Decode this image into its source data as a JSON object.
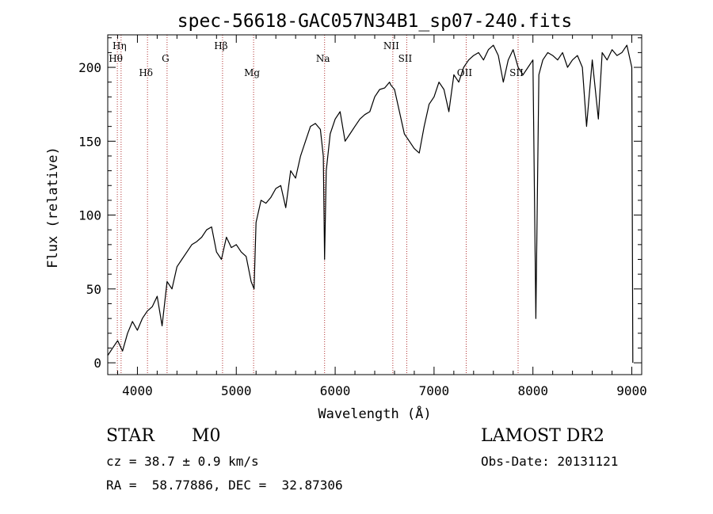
{
  "chart_data": {
    "type": "line",
    "title": "spec-56618-GAC057N34B1_sp07-240.fits",
    "xlabel": "Wavelength (Å)",
    "ylabel": "Flux (relative)",
    "xlim": [
      3700,
      9100
    ],
    "ylim": [
      -8,
      222
    ],
    "xticks": [
      4000,
      5000,
      6000,
      7000,
      8000,
      9000
    ],
    "yticks": [
      0,
      50,
      100,
      150,
      200
    ],
    "xtick_labels": [
      "4000",
      "5000",
      "6000",
      "7000",
      "8000",
      "9000"
    ],
    "ytick_labels": [
      "0",
      "50",
      "100",
      "150",
      "200"
    ],
    "grid": false,
    "series": [
      {
        "line_color": "#000000",
        "x": [
          3700,
          3750,
          3800,
          3850,
          3900,
          3950,
          4000,
          4050,
          4100,
          4150,
          4200,
          4250,
          4300,
          4350,
          4400,
          4450,
          4500,
          4550,
          4600,
          4650,
          4700,
          4750,
          4800,
          4850,
          4900,
          4950,
          5000,
          5050,
          5100,
          5150,
          5180,
          5200,
          5250,
          5300,
          5350,
          5400,
          5450,
          5500,
          5550,
          5600,
          5650,
          5700,
          5750,
          5800,
          5850,
          5880,
          5893,
          5910,
          5950,
          6000,
          6050,
          6100,
          6150,
          6200,
          6250,
          6300,
          6350,
          6400,
          6450,
          6500,
          6550,
          6563,
          6600,
          6650,
          6700,
          6750,
          6800,
          6850,
          6900,
          6950,
          7000,
          7050,
          7100,
          7150,
          7200,
          7250,
          7300,
          7350,
          7400,
          7450,
          7500,
          7550,
          7600,
          7650,
          7700,
          7750,
          7800,
          7850,
          7900,
          7950,
          8000,
          8030,
          8060,
          8100,
          8150,
          8200,
          8250,
          8300,
          8350,
          8400,
          8450,
          8500,
          8542,
          8600,
          8662,
          8700,
          8750,
          8800,
          8850,
          8900,
          8950,
          9000,
          9010
        ],
        "y": [
          5,
          10,
          15,
          8,
          20,
          28,
          22,
          30,
          35,
          38,
          45,
          25,
          55,
          50,
          65,
          70,
          75,
          80,
          82,
          85,
          90,
          92,
          75,
          70,
          85,
          78,
          80,
          75,
          72,
          55,
          50,
          95,
          110,
          108,
          112,
          118,
          120,
          105,
          130,
          125,
          140,
          150,
          160,
          162,
          158,
          140,
          70,
          130,
          155,
          165,
          170,
          150,
          155,
          160,
          165,
          168,
          170,
          180,
          185,
          186,
          190,
          188,
          185,
          170,
          155,
          150,
          145,
          142,
          160,
          175,
          180,
          190,
          185,
          170,
          195,
          190,
          200,
          205,
          208,
          210,
          205,
          212,
          215,
          208,
          190,
          205,
          212,
          200,
          195,
          200,
          205,
          30,
          195,
          205,
          210,
          208,
          205,
          210,
          200,
          205,
          208,
          200,
          160,
          205,
          165,
          210,
          205,
          212,
          208,
          210,
          215,
          200,
          0
        ]
      }
    ],
    "line_markers": [
      {
        "label": "Hη",
        "x": 3835,
        "row": 0
      },
      {
        "label": "Hθ",
        "x": 3797,
        "row": 1
      },
      {
        "label": "Hδ",
        "x": 4102,
        "row": 2
      },
      {
        "label": "G",
        "x": 4300,
        "row": 1
      },
      {
        "label": "Hβ",
        "x": 4861,
        "row": 0
      },
      {
        "label": "Mg",
        "x": 5175,
        "row": 2
      },
      {
        "label": "Na",
        "x": 5893,
        "row": 1
      },
      {
        "label": "NII",
        "x": 6583,
        "row": 0
      },
      {
        "label": "SII",
        "x": 6724,
        "row": 1
      },
      {
        "label": "OII",
        "x": 7325,
        "row": 2
      },
      {
        "label": "SII",
        "x": 7850,
        "row": 2
      }
    ]
  },
  "info": {
    "object_class": "STAR",
    "subclass": "M0",
    "survey": "LAMOST DR2",
    "redshift": "cz = 38.7 ± 0.9 km/s",
    "obs_date": "Obs-Date: 20131121",
    "coords": "RA =  58.77886, DEC =  32.87306"
  }
}
